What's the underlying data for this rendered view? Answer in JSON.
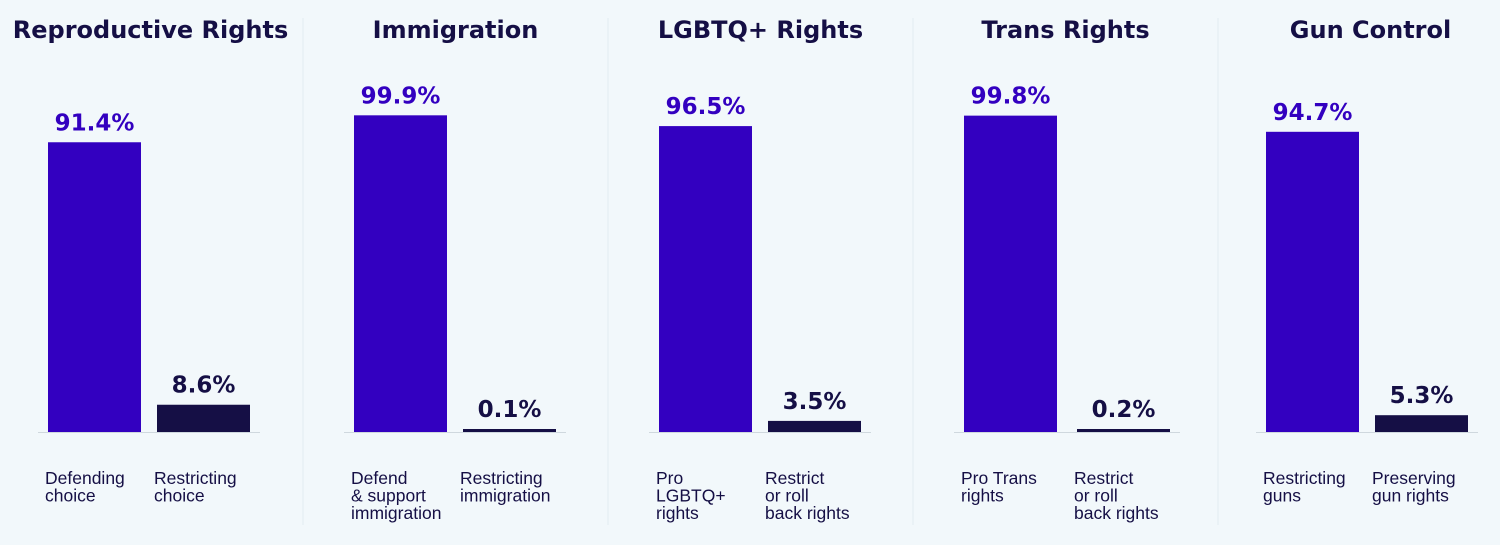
{
  "colors": {
    "background": "#f2f8fb",
    "primary_bar": "#3300c0",
    "secondary_bar": "#150f45",
    "primary_label": "#3300c0",
    "secondary_label": "#150f45"
  },
  "chart_data": [
    {
      "type": "bar",
      "title": "Reproductive Rights",
      "categories": [
        [
          "Defending",
          "choice"
        ],
        [
          "Restricting",
          "choice"
        ]
      ],
      "values": [
        91.4,
        8.6
      ],
      "value_labels": [
        "91.4%",
        "8.6%"
      ],
      "ylim": [
        0,
        100
      ]
    },
    {
      "type": "bar",
      "title": "Immigration",
      "categories": [
        [
          "Defend",
          "& support",
          "immigration"
        ],
        [
          "Restricting",
          "immigration"
        ]
      ],
      "values": [
        99.9,
        0.1
      ],
      "value_labels": [
        "99.9%",
        "0.1%"
      ],
      "ylim": [
        0,
        100
      ]
    },
    {
      "type": "bar",
      "title": "LGBTQ+ Rights",
      "categories": [
        [
          "Pro",
          "LGBTQ+",
          "rights"
        ],
        [
          "Restrict",
          "or roll",
          "back rights"
        ]
      ],
      "values": [
        96.5,
        3.5
      ],
      "value_labels": [
        "96.5%",
        "3.5%"
      ],
      "ylim": [
        0,
        100
      ]
    },
    {
      "type": "bar",
      "title": "Trans Rights",
      "categories": [
        [
          "Pro Trans",
          "rights"
        ],
        [
          "Restrict",
          "or roll",
          "back rights"
        ]
      ],
      "values": [
        99.8,
        0.2
      ],
      "value_labels": [
        "99.8%",
        "0.2%"
      ],
      "ylim": [
        0,
        100
      ]
    },
    {
      "type": "bar",
      "title": "Gun Control",
      "categories": [
        [
          "Restricting",
          "guns"
        ],
        [
          "Preserving",
          "gun rights"
        ]
      ],
      "values": [
        94.7,
        5.3
      ],
      "value_labels": [
        "94.7%",
        "5.3%"
      ],
      "ylim": [
        0,
        100
      ]
    }
  ]
}
